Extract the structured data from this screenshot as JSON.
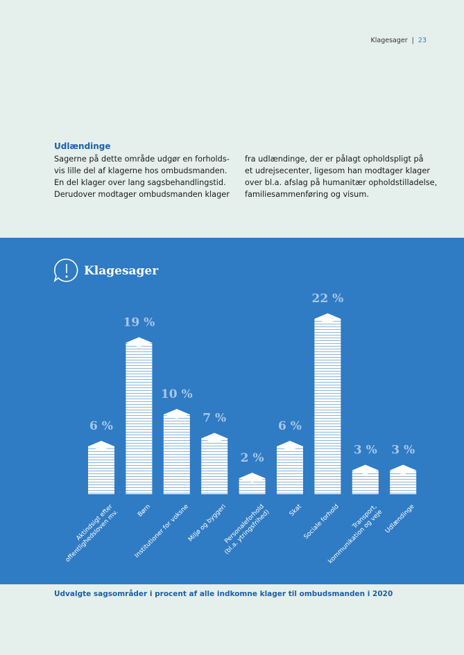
{
  "header": {
    "section": "Klagesager",
    "page": "23"
  },
  "article": {
    "heading": "Udlændinge",
    "col1": [
      "Sagerne på dette område udgør en forholds-",
      "vis lille del af klagerne hos ombudsmanden.",
      "En del klager over lang sagsbehandlingstid.",
      "Derudover modtager ombudsmanden klager"
    ],
    "col2": [
      "fra udlændinge, der er pålagt opholdspligt på",
      "et udrejsecenter, ligesom han modtager klager",
      "over bl.a. afslag på humanitær opholdstilladelse,",
      "familiesammenføring og visum."
    ]
  },
  "chart_data": {
    "type": "bar",
    "title": "Klagesager",
    "categories": [
      "Aktindsigt efter\noffentlighedsloven mv.",
      "Børn",
      "Institutioner for voksne",
      "Miljø og byggeri",
      "Personaleforhold\n(bl.a. ytringsfrihed)",
      "Skat",
      "Sociale forhold",
      "Transport,\nkommunikation og veje",
      "Udlændinge"
    ],
    "values": [
      6,
      19,
      10,
      7,
      2,
      6,
      22,
      3,
      3
    ],
    "value_labels": [
      "6 %",
      "19 %",
      "10 %",
      "7 %",
      "2 %",
      "6 %",
      "22 %",
      "3 %",
      "3 %"
    ],
    "color": "#ffffff"
  },
  "caption": "Udvalgte sagsområder i procent af alle indkomne klager til ombudsmanden i 2020"
}
